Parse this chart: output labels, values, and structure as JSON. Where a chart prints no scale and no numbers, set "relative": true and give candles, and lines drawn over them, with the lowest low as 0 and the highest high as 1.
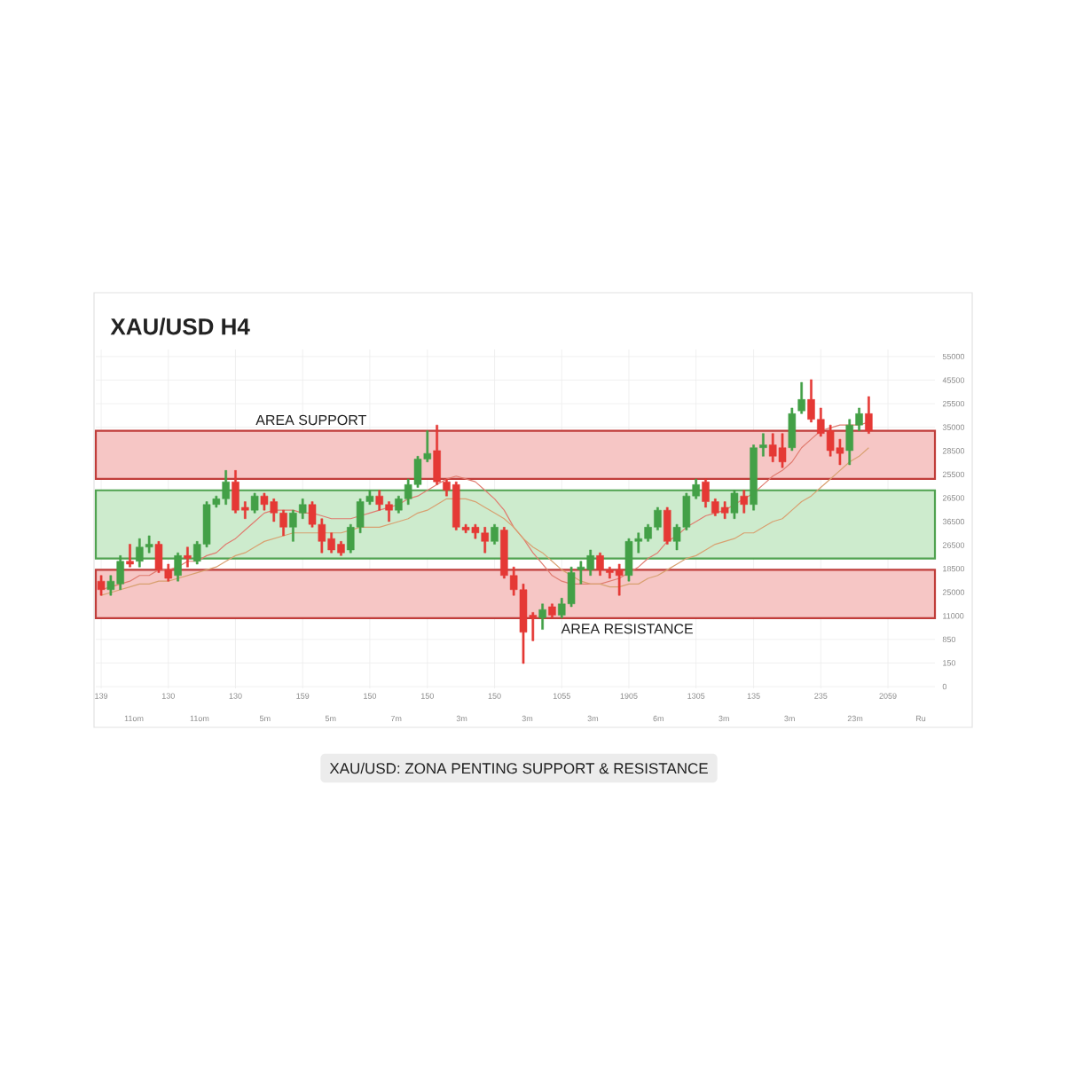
{
  "chart_data": {
    "type": "candlestick",
    "title": "XAU/USD H4",
    "relative": true,
    "grid": true,
    "categories": [
      "139",
      null,
      null,
      null,
      null,
      null,
      null,
      "130",
      null,
      null,
      null,
      null,
      null,
      null,
      "130",
      null,
      null,
      null,
      null,
      null,
      null,
      "159",
      null,
      null,
      null,
      null,
      null,
      null,
      "150",
      null,
      null,
      null,
      null,
      null,
      "150",
      null,
      null,
      null,
      null,
      null,
      null,
      "150",
      null,
      null,
      null,
      null,
      null,
      null,
      "1055",
      null,
      null,
      null,
      null,
      null,
      null,
      "1905",
      null,
      null,
      null,
      null,
      null,
      null,
      "1305",
      null,
      null,
      null,
      null,
      null,
      "135",
      null,
      null,
      null,
      null,
      null,
      null,
      "235",
      null,
      null,
      null,
      null,
      null,
      null,
      "2059"
    ],
    "ohlc": [
      [
        0.29,
        0.31,
        0.24,
        0.26
      ],
      [
        0.26,
        0.31,
        0.24,
        0.29
      ],
      [
        0.28,
        0.38,
        0.26,
        0.36
      ],
      [
        0.36,
        0.42,
        0.34,
        0.35
      ],
      [
        0.36,
        0.44,
        0.34,
        0.41
      ],
      [
        0.41,
        0.45,
        0.39,
        0.42
      ],
      [
        0.42,
        0.43,
        0.32,
        0.33
      ],
      [
        0.33,
        0.35,
        0.29,
        0.3
      ],
      [
        0.31,
        0.39,
        0.29,
        0.38
      ],
      [
        0.38,
        0.41,
        0.34,
        0.37
      ],
      [
        0.36,
        0.43,
        0.35,
        0.42
      ],
      [
        0.42,
        0.57,
        0.41,
        0.56
      ],
      [
        0.56,
        0.59,
        0.55,
        0.58
      ],
      [
        0.58,
        0.68,
        0.56,
        0.64
      ],
      [
        0.64,
        0.68,
        0.53,
        0.54
      ],
      [
        0.55,
        0.57,
        0.51,
        0.54
      ],
      [
        0.54,
        0.6,
        0.53,
        0.59
      ],
      [
        0.59,
        0.6,
        0.54,
        0.56
      ],
      [
        0.57,
        0.58,
        0.5,
        0.53
      ],
      [
        0.53,
        0.54,
        0.45,
        0.48
      ],
      [
        0.48,
        0.54,
        0.43,
        0.53
      ],
      [
        0.53,
        0.58,
        0.51,
        0.56
      ],
      [
        0.56,
        0.57,
        0.48,
        0.49
      ],
      [
        0.49,
        0.51,
        0.39,
        0.43
      ],
      [
        0.44,
        0.46,
        0.39,
        0.4
      ],
      [
        0.42,
        0.43,
        0.38,
        0.39
      ],
      [
        0.4,
        0.49,
        0.39,
        0.48
      ],
      [
        0.48,
        0.58,
        0.46,
        0.57
      ],
      [
        0.57,
        0.61,
        0.56,
        0.59
      ],
      [
        0.59,
        0.61,
        0.54,
        0.56
      ],
      [
        0.56,
        0.57,
        0.5,
        0.54
      ],
      [
        0.54,
        0.59,
        0.53,
        0.58
      ],
      [
        0.58,
        0.65,
        0.56,
        0.63
      ],
      [
        0.63,
        0.73,
        0.62,
        0.72
      ],
      [
        0.72,
        0.82,
        0.71,
        0.74
      ],
      [
        0.75,
        0.84,
        0.63,
        0.64
      ],
      [
        0.64,
        0.65,
        0.59,
        0.61
      ],
      [
        0.63,
        0.64,
        0.47,
        0.48
      ],
      [
        0.48,
        0.49,
        0.46,
        0.47
      ],
      [
        0.48,
        0.49,
        0.44,
        0.46
      ],
      [
        0.46,
        0.48,
        0.39,
        0.43
      ],
      [
        0.43,
        0.49,
        0.42,
        0.48
      ],
      [
        0.47,
        0.48,
        0.3,
        0.31
      ],
      [
        0.31,
        0.34,
        0.24,
        0.26
      ],
      [
        0.26,
        0.28,
        0.0,
        0.11
      ],
      [
        0.17,
        0.18,
        0.08,
        0.16
      ],
      [
        0.16,
        0.21,
        0.12,
        0.19
      ],
      [
        0.2,
        0.21,
        0.16,
        0.17
      ],
      [
        0.17,
        0.23,
        0.16,
        0.21
      ],
      [
        0.21,
        0.34,
        0.2,
        0.32
      ],
      [
        0.33,
        0.36,
        0.28,
        0.34
      ],
      [
        0.33,
        0.4,
        0.31,
        0.38
      ],
      [
        0.38,
        0.39,
        0.31,
        0.33
      ],
      [
        0.33,
        0.34,
        0.3,
        0.32
      ],
      [
        0.33,
        0.35,
        0.24,
        0.31
      ],
      [
        0.31,
        0.44,
        0.29,
        0.43
      ],
      [
        0.43,
        0.46,
        0.39,
        0.44
      ],
      [
        0.44,
        0.49,
        0.43,
        0.48
      ],
      [
        0.48,
        0.55,
        0.47,
        0.54
      ],
      [
        0.54,
        0.55,
        0.42,
        0.43
      ],
      [
        0.43,
        0.49,
        0.4,
        0.48
      ],
      [
        0.48,
        0.6,
        0.47,
        0.59
      ],
      [
        0.59,
        0.65,
        0.58,
        0.63
      ],
      [
        0.64,
        0.65,
        0.55,
        0.57
      ],
      [
        0.57,
        0.58,
        0.52,
        0.53
      ],
      [
        0.55,
        0.57,
        0.51,
        0.53
      ],
      [
        0.53,
        0.61,
        0.51,
        0.6
      ],
      [
        0.59,
        0.61,
        0.53,
        0.56
      ],
      [
        0.56,
        0.77,
        0.54,
        0.76
      ],
      [
        0.76,
        0.81,
        0.73,
        0.77
      ],
      [
        0.77,
        0.81,
        0.71,
        0.73
      ],
      [
        0.76,
        0.81,
        0.69,
        0.71
      ],
      [
        0.76,
        0.9,
        0.75,
        0.88
      ],
      [
        0.89,
        0.99,
        0.88,
        0.93
      ],
      [
        0.93,
        1.0,
        0.85,
        0.86
      ],
      [
        0.86,
        0.9,
        0.8,
        0.81
      ],
      [
        0.82,
        0.84,
        0.73,
        0.75
      ],
      [
        0.76,
        0.79,
        0.7,
        0.74
      ],
      [
        0.75,
        0.86,
        0.7,
        0.84
      ],
      [
        0.84,
        0.9,
        0.82,
        0.88
      ],
      [
        0.88,
        0.94,
        0.81,
        0.82
      ],
      null,
      null
    ],
    "colors": [
      "#e53935",
      "#43a047",
      "#43a047",
      "#e53935",
      "#43a047",
      "#43a047",
      "#e53935",
      "#e53935",
      "#43a047",
      "#e53935",
      "#43a047",
      "#43a047",
      "#43a047",
      "#43a047",
      "#e53935",
      "#e53935",
      "#43a047",
      "#e53935",
      "#e53935",
      "#e53935",
      "#43a047",
      "#43a047",
      "#e53935",
      "#e53935",
      "#e53935",
      "#e53935",
      "#43a047",
      "#43a047",
      "#43a047",
      "#e53935",
      "#e53935",
      "#43a047",
      "#43a047",
      "#43a047",
      "#43a047",
      "#e53935",
      "#e53935",
      "#e53935",
      "#e53935",
      "#e53935",
      "#e53935",
      "#43a047",
      "#e53935",
      "#e53935",
      "#e53935",
      "#e53935",
      "#43a047",
      "#e53935",
      "#43a047",
      "#43a047",
      "#43a047",
      "#43a047",
      "#e53935",
      "#e53935",
      "#e53935",
      "#43a047",
      "#43a047",
      "#43a047",
      "#43a047",
      "#e53935",
      "#43a047",
      "#43a047",
      "#43a047",
      "#e53935",
      "#e53935",
      "#e53935",
      "#43a047",
      "#e53935",
      "#43a047",
      "#43a047",
      "#e53935",
      "#e53935",
      "#43a047",
      "#43a047",
      "#e53935",
      "#e53935",
      "#e53935",
      "#e53935",
      "#43a047",
      "#43a047",
      "#e53935",
      null,
      null
    ],
    "series": [
      {
        "type": "line",
        "color": "#e07b6f",
        "values": [
          0.26,
          0.27,
          0.28,
          0.29,
          0.31,
          0.31,
          0.33,
          0.33,
          0.34,
          0.36,
          0.36,
          0.38,
          0.39,
          0.42,
          0.44,
          0.47,
          0.5,
          0.53,
          0.54,
          0.54,
          0.54,
          0.53,
          0.53,
          0.52,
          0.51,
          0.51,
          0.51,
          0.52,
          0.53,
          0.54,
          0.55,
          0.56,
          0.58,
          0.59,
          0.61,
          0.63,
          0.65,
          0.66,
          0.65,
          0.64,
          0.61,
          0.58,
          0.54,
          0.48,
          0.44,
          0.39,
          0.35,
          0.31,
          0.29,
          0.28,
          0.28,
          0.28,
          0.28,
          0.29,
          0.3,
          0.32,
          0.34,
          0.37,
          0.39,
          0.43,
          0.45,
          0.48,
          0.5,
          0.52,
          0.53,
          0.54,
          0.56,
          0.58,
          0.6,
          0.63,
          0.66,
          0.68,
          0.71,
          0.76,
          0.79,
          0.82,
          0.83,
          0.84,
          0.84,
          0.84,
          0.85,
          null,
          null
        ]
      },
      {
        "type": "line",
        "color": "#d8a070",
        "values": [
          0.24,
          0.25,
          0.26,
          0.27,
          0.28,
          0.28,
          0.29,
          0.29,
          0.3,
          0.31,
          0.32,
          0.33,
          0.34,
          0.36,
          0.38,
          0.39,
          0.41,
          0.43,
          0.44,
          0.45,
          0.46,
          0.46,
          0.46,
          0.46,
          0.46,
          0.46,
          0.47,
          0.48,
          0.48,
          0.48,
          0.49,
          0.5,
          0.51,
          0.53,
          0.54,
          0.56,
          0.58,
          0.58,
          0.58,
          0.57,
          0.55,
          0.53,
          0.51,
          0.48,
          0.44,
          0.41,
          0.39,
          0.36,
          0.33,
          0.31,
          0.29,
          0.28,
          0.28,
          0.27,
          0.27,
          0.28,
          0.28,
          0.3,
          0.31,
          0.33,
          0.35,
          0.37,
          0.38,
          0.4,
          0.42,
          0.43,
          0.44,
          0.46,
          0.46,
          0.48,
          0.5,
          0.51,
          0.54,
          0.57,
          0.59,
          0.62,
          0.65,
          0.68,
          0.71,
          0.73,
          0.76,
          null,
          null
        ]
      }
    ],
    "bands": [
      {
        "axis": "y",
        "from": 0.65,
        "to": 0.82,
        "label": "AREA SUPPORT",
        "color": "#f6c6c5"
      },
      {
        "axis": "y",
        "from": 0.37,
        "to": 0.61,
        "color": "#cdebcd"
      },
      {
        "axis": "y",
        "from": 0.16,
        "to": 0.33,
        "label": "AREA RESISTANCE",
        "color": "#f6c6c5"
      }
    ],
    "annotations": [
      "55000",
      "45500",
      "25500",
      "35000",
      "28500",
      "25500",
      "26500",
      "36500",
      "26500",
      "18500",
      "25000",
      "11000",
      "850",
      "150",
      "0",
      "11om",
      "11om",
      "5m",
      "5m",
      "7m",
      "3m",
      "3m",
      "3m",
      "6m",
      "3m",
      "3m",
      "23m",
      "Ru",
      "XAU/USD: ZONA PENTING SUPPORT & RESISTANCE"
    ]
  }
}
